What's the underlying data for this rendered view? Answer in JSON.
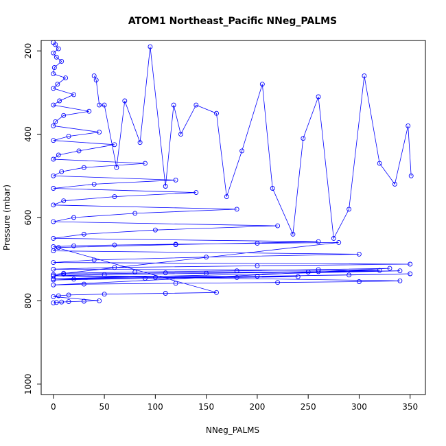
{
  "chart_data": {
    "type": "line",
    "title": "ATOM1 Northeast_Pacific NNeg_PALMS",
    "xlabel": "NNeg_PALMS",
    "ylabel": "Pressure (mbar)",
    "xlim": [
      -12,
      365
    ],
    "ylim": [
      1025,
      175
    ],
    "y_reversed": true,
    "xticks": [
      0,
      50,
      100,
      150,
      200,
      250,
      300,
      350
    ],
    "yticks": [
      200,
      400,
      600,
      800,
      1000
    ],
    "grid": false,
    "legend": "none",
    "colors": {
      "series": "#0000ff",
      "axis": "#000000",
      "background": "#ffffff"
    },
    "series": [
      {
        "x": [
          0,
          2,
          5,
          0,
          3,
          8,
          1,
          0,
          12,
          4,
          0,
          20,
          6,
          0,
          35,
          10,
          2,
          0,
          45,
          15,
          0,
          60,
          25,
          5,
          0,
          90,
          30,
          8,
          0,
          120,
          40,
          0,
          140,
          60,
          10,
          0,
          180,
          80,
          20,
          0,
          220,
          100,
          30,
          0,
          260,
          120,
          5,
          0,
          300,
          150,
          40,
          0,
          350,
          200,
          60,
          0,
          320,
          260,
          110,
          10,
          0,
          240,
          180,
          90,
          20,
          0,
          350,
          290,
          200,
          100,
          0,
          340,
          250,
          150,
          50,
          0,
          340,
          300,
          220,
          120,
          30,
          0,
          330,
          260,
          180,
          80,
          10,
          0,
          280,
          200,
          120,
          60,
          20,
          0,
          160,
          110,
          50,
          15,
          5,
          0,
          45,
          30,
          15,
          8,
          3,
          0
        ],
        "y": [
          180,
          185,
          195,
          205,
          215,
          225,
          240,
          255,
          265,
          280,
          290,
          305,
          320,
          330,
          345,
          355,
          370,
          380,
          395,
          405,
          415,
          425,
          440,
          450,
          460,
          470,
          480,
          490,
          500,
          510,
          520,
          530,
          540,
          550,
          560,
          570,
          580,
          590,
          600,
          610,
          620,
          630,
          640,
          650,
          658,
          665,
          672,
          680,
          688,
          695,
          702,
          708,
          712,
          716,
          720,
          724,
          727,
          730,
          733,
          736,
          740,
          742,
          744,
          746,
          748,
          750,
          735,
          738,
          741,
          744,
          747,
          728,
          731,
          734,
          737,
          740,
          752,
          754,
          756,
          758,
          760,
          762,
          722,
          725,
          728,
          731,
          734,
          737,
          660,
          662,
          664,
          666,
          668,
          670,
          780,
          782,
          784,
          786,
          788,
          790,
          800,
          801,
          802,
          803,
          804,
          805
        ]
      },
      {
        "x": [
          40,
          42,
          45,
          50,
          62,
          70,
          85,
          95,
          110,
          118,
          125,
          140,
          160,
          170,
          185,
          205,
          215,
          235,
          245,
          260,
          275,
          290,
          305,
          320,
          335,
          348,
          351
        ],
        "y": [
          260,
          270,
          330,
          330,
          480,
          320,
          420,
          190,
          525,
          330,
          400,
          330,
          350,
          550,
          440,
          280,
          530,
          640,
          410,
          310,
          650,
          580,
          260,
          470,
          520,
          380,
          500
        ]
      }
    ]
  }
}
